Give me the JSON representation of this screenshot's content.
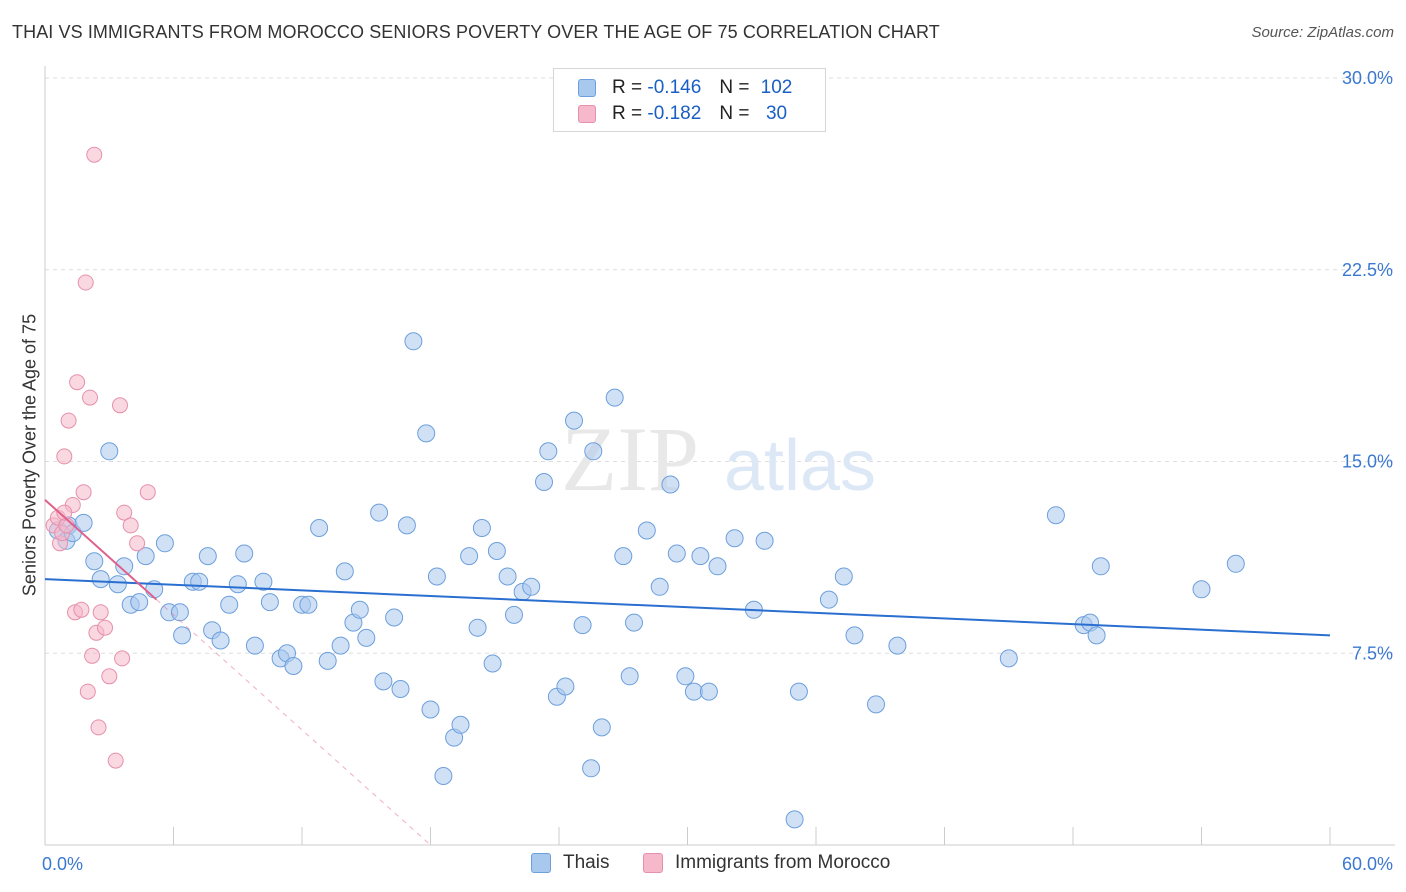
{
  "title": "THAI VS IMMIGRANTS FROM MOROCCO SENIORS POVERTY OVER THE AGE OF 75 CORRELATION CHART",
  "source": "Source: ZipAtlas.com",
  "watermark": {
    "zip": "ZIP",
    "atlas": "atlas"
  },
  "colors": {
    "thais_fill": "#a9c8ee",
    "thais_stroke": "#6d9fdc",
    "thais_line": "#2a6fd0",
    "morocco_fill": "#f6b8cb",
    "morocco_stroke": "#e690ab",
    "morocco_line": "#e0608c",
    "tick_label": "#3b78d0",
    "grid": "#dddddd"
  },
  "legend": {
    "rows": [
      {
        "r_label": "R =",
        "r_value": "-0.146",
        "n_label": "N =",
        "n_value": "102"
      },
      {
        "r_label": "R =",
        "r_value": "-0.182",
        "n_label": "N =",
        "n_value": "30"
      }
    ]
  },
  "chart_data": {
    "type": "scatter",
    "title": "THAI VS IMMIGRANTS FROM MOROCCO SENIORS POVERTY OVER THE AGE OF 75 CORRELATION CHART",
    "xlabel": "",
    "ylabel": "Seniors Poverty Over the Age of 75",
    "xlim": [
      0,
      60
    ],
    "ylim": [
      0,
      30
    ],
    "x_tick_labels": [
      "0.0%",
      "60.0%"
    ],
    "y_ticks": [
      7.5,
      15.0,
      22.5,
      30.0
    ],
    "y_tick_labels": [
      "7.5%",
      "15.0%",
      "22.5%",
      "30.0%"
    ],
    "grid": "horizontal dashed",
    "legend_position": "top-center and bottom",
    "series": [
      {
        "name": "Thais",
        "r": -0.146,
        "n": 102,
        "trend": {
          "x": [
            0,
            60
          ],
          "y": [
            10.4,
            8.2
          ]
        },
        "points": [
          [
            0.6,
            12.3
          ],
          [
            1.0,
            11.9
          ],
          [
            1.1,
            12.5
          ],
          [
            1.3,
            12.2
          ],
          [
            1.8,
            12.6
          ],
          [
            2.3,
            11.1
          ],
          [
            2.6,
            10.4
          ],
          [
            3.0,
            15.4
          ],
          [
            3.4,
            10.2
          ],
          [
            3.7,
            10.9
          ],
          [
            4.0,
            9.4
          ],
          [
            4.4,
            9.5
          ],
          [
            4.7,
            11.3
          ],
          [
            5.1,
            10.0
          ],
          [
            5.6,
            11.8
          ],
          [
            5.8,
            9.1
          ],
          [
            6.3,
            9.1
          ],
          [
            6.4,
            8.2
          ],
          [
            6.9,
            10.3
          ],
          [
            7.2,
            10.3
          ],
          [
            7.6,
            11.3
          ],
          [
            7.8,
            8.4
          ],
          [
            8.2,
            8.0
          ],
          [
            8.6,
            9.4
          ],
          [
            9.0,
            10.2
          ],
          [
            9.3,
            11.4
          ],
          [
            9.8,
            7.8
          ],
          [
            10.2,
            10.3
          ],
          [
            10.5,
            9.5
          ],
          [
            11.0,
            7.3
          ],
          [
            11.3,
            7.5
          ],
          [
            11.6,
            7.0
          ],
          [
            12.0,
            9.4
          ],
          [
            12.3,
            9.4
          ],
          [
            12.8,
            12.4
          ],
          [
            13.2,
            7.2
          ],
          [
            13.8,
            7.8
          ],
          [
            14.0,
            10.7
          ],
          [
            14.4,
            8.7
          ],
          [
            14.7,
            9.2
          ],
          [
            15.0,
            8.1
          ],
          [
            15.6,
            13.0
          ],
          [
            15.8,
            6.4
          ],
          [
            16.3,
            8.9
          ],
          [
            16.6,
            6.1
          ],
          [
            16.9,
            12.5
          ],
          [
            17.2,
            19.7
          ],
          [
            17.8,
            16.1
          ],
          [
            18.0,
            5.3
          ],
          [
            18.3,
            10.5
          ],
          [
            18.6,
            2.7
          ],
          [
            19.1,
            4.2
          ],
          [
            19.4,
            4.7
          ],
          [
            19.8,
            11.3
          ],
          [
            20.2,
            8.5
          ],
          [
            20.4,
            12.4
          ],
          [
            20.9,
            7.1
          ],
          [
            21.1,
            11.5
          ],
          [
            21.6,
            10.5
          ],
          [
            21.9,
            9.0
          ],
          [
            22.3,
            9.9
          ],
          [
            22.7,
            10.1
          ],
          [
            23.3,
            14.2
          ],
          [
            23.5,
            15.4
          ],
          [
            23.9,
            5.8
          ],
          [
            24.3,
            6.2
          ],
          [
            24.7,
            16.6
          ],
          [
            25.1,
            8.6
          ],
          [
            25.5,
            3.0
          ],
          [
            25.6,
            15.4
          ],
          [
            26.0,
            4.6
          ],
          [
            26.6,
            17.5
          ],
          [
            27.0,
            11.3
          ],
          [
            27.3,
            6.6
          ],
          [
            27.5,
            8.7
          ],
          [
            28.1,
            12.3
          ],
          [
            28.7,
            10.1
          ],
          [
            29.2,
            14.1
          ],
          [
            29.5,
            11.4
          ],
          [
            29.9,
            6.6
          ],
          [
            30.3,
            6.0
          ],
          [
            30.6,
            11.3
          ],
          [
            31.0,
            6.0
          ],
          [
            31.4,
            10.9
          ],
          [
            32.2,
            12.0
          ],
          [
            33.1,
            9.2
          ],
          [
            33.6,
            11.9
          ],
          [
            35.0,
            1.0
          ],
          [
            35.2,
            6.0
          ],
          [
            36.6,
            9.6
          ],
          [
            37.3,
            10.5
          ],
          [
            37.8,
            8.2
          ],
          [
            38.8,
            5.5
          ],
          [
            39.8,
            7.8
          ],
          [
            47.2,
            12.9
          ],
          [
            48.5,
            8.6
          ],
          [
            48.8,
            8.7
          ],
          [
            49.1,
            8.2
          ],
          [
            49.3,
            10.9
          ],
          [
            54.0,
            10.0
          ],
          [
            55.6,
            11.0
          ],
          [
            45.0,
            7.3
          ]
        ]
      },
      {
        "name": "Immigrants from Morocco",
        "r": -0.182,
        "n": 30,
        "trend": {
          "x": [
            0,
            5.2
          ],
          "y": [
            13.5,
            9.6
          ]
        },
        "trend_extension": {
          "x": [
            5.2,
            18.0
          ],
          "y": [
            9.6,
            0.0
          ]
        },
        "points": [
          [
            0.4,
            12.5
          ],
          [
            0.6,
            12.8
          ],
          [
            0.7,
            11.8
          ],
          [
            0.8,
            12.2
          ],
          [
            0.9,
            15.2
          ],
          [
            1.0,
            12.5
          ],
          [
            1.1,
            16.6
          ],
          [
            1.3,
            13.3
          ],
          [
            1.4,
            9.1
          ],
          [
            1.5,
            18.1
          ],
          [
            1.7,
            9.2
          ],
          [
            1.8,
            13.8
          ],
          [
            1.9,
            22.0
          ],
          [
            2.0,
            6.0
          ],
          [
            2.1,
            17.5
          ],
          [
            2.2,
            7.4
          ],
          [
            2.3,
            27.0
          ],
          [
            2.4,
            8.3
          ],
          [
            2.5,
            4.6
          ],
          [
            2.6,
            9.1
          ],
          [
            2.8,
            8.5
          ],
          [
            3.0,
            6.6
          ],
          [
            3.3,
            3.3
          ],
          [
            3.5,
            17.2
          ],
          [
            3.6,
            7.3
          ],
          [
            3.7,
            13.0
          ],
          [
            4.0,
            12.5
          ],
          [
            4.3,
            11.8
          ],
          [
            4.8,
            13.8
          ],
          [
            0.9,
            13.0
          ]
        ]
      }
    ]
  },
  "bottom_legend": [
    "Thais",
    "Immigrants from Morocco"
  ]
}
